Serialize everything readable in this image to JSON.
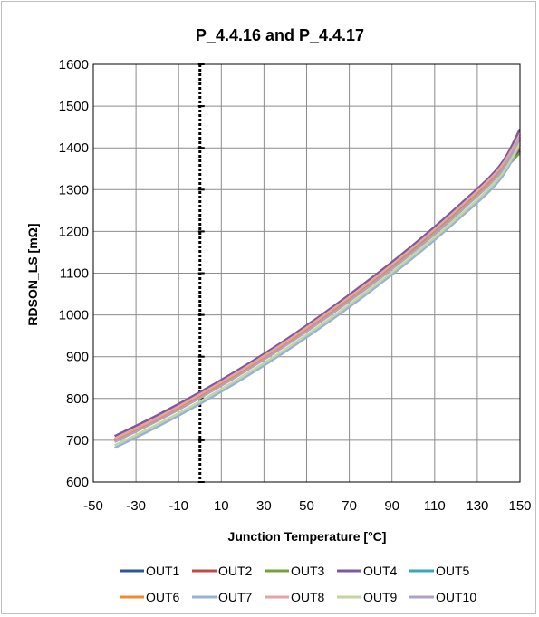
{
  "chart_data": {
    "type": "line",
    "title": "P_4.4.16 and P_4.4.17",
    "xlabel": "Junction Temperature  [°C]",
    "ylabel": "RDSON_LS [mΩ]",
    "xlim": [
      -50,
      150
    ],
    "ylim": [
      600,
      1600
    ],
    "x_ticks": [
      -50,
      -30,
      -10,
      10,
      30,
      50,
      70,
      90,
      110,
      130,
      150
    ],
    "y_ticks": [
      600,
      700,
      800,
      900,
      1000,
      1100,
      1200,
      1300,
      1400,
      1500,
      1600
    ],
    "grid": true,
    "legend_position": "bottom",
    "x": [
      -40,
      -20,
      0,
      20,
      40,
      60,
      80,
      100,
      120,
      140,
      150
    ],
    "series": [
      {
        "name": "OUT1",
        "color": "#2e5597",
        "values": [
          700,
          750,
          805,
          865,
          930,
          1000,
          1075,
          1155,
          1243,
          1340,
          1392
        ]
      },
      {
        "name": "OUT2",
        "color": "#be4b48",
        "values": [
          702,
          752,
          808,
          868,
          933,
          1004,
          1079,
          1160,
          1248,
          1345,
          1398
        ]
      },
      {
        "name": "OUT3",
        "color": "#77a23a",
        "values": [
          698,
          748,
          803,
          862,
          927,
          997,
          1071,
          1151,
          1238,
          1335,
          1388
        ]
      },
      {
        "name": "OUT4",
        "color": "#7d5a9f",
        "values": [
          710,
          760,
          815,
          875,
          940,
          1011,
          1087,
          1168,
          1256,
          1354,
          1445
        ]
      },
      {
        "name": "OUT5",
        "color": "#3aa6bd",
        "values": [
          701,
          751,
          806,
          866,
          931,
          1002,
          1077,
          1157,
          1245,
          1342,
          1420
        ]
      },
      {
        "name": "OUT6",
        "color": "#f08a2c",
        "values": [
          699,
          749,
          804,
          864,
          929,
          999,
          1074,
          1154,
          1242,
          1339,
          1418
        ]
      },
      {
        "name": "OUT7",
        "color": "#95b3d7",
        "values": [
          682,
          732,
          787,
          847,
          912,
          982,
          1057,
          1137,
          1224,
          1320,
          1408
        ]
      },
      {
        "name": "OUT8",
        "color": "#e6a3a2",
        "values": [
          704,
          754,
          810,
          870,
          935,
          1006,
          1081,
          1162,
          1250,
          1348,
          1432
        ]
      },
      {
        "name": "OUT9",
        "color": "#c3d69b",
        "values": [
          688,
          738,
          793,
          853,
          918,
          988,
          1063,
          1143,
          1230,
          1327,
          1412
        ]
      },
      {
        "name": "OUT10",
        "color": "#b1a0c7",
        "values": [
          696,
          746,
          801,
          861,
          926,
          996,
          1071,
          1151,
          1239,
          1336,
          1425
        ]
      }
    ]
  }
}
